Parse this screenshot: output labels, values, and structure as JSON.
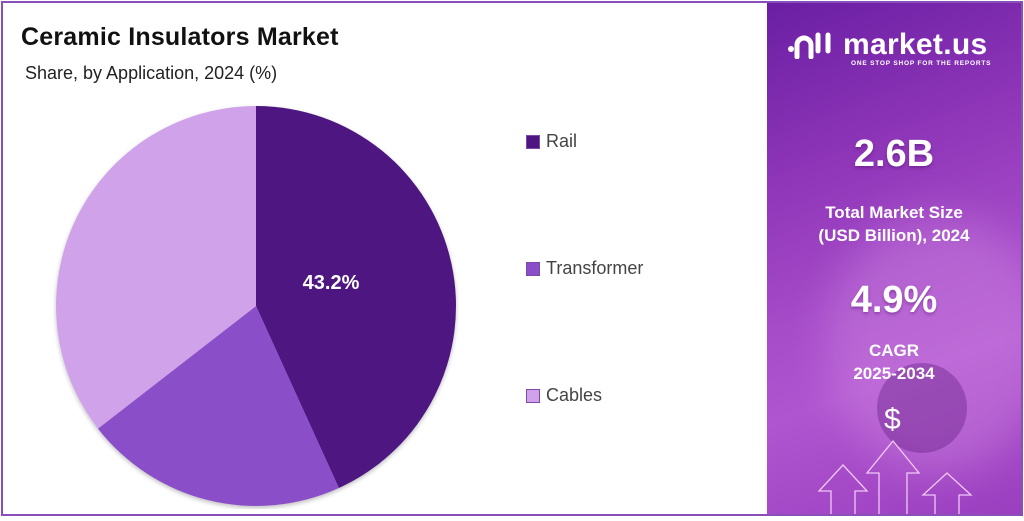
{
  "header": {
    "title": "Ceramic Insulators Market",
    "subtitle": "Share, by Application, 2024 (%)"
  },
  "legend": {
    "items": [
      {
        "label": "Rail",
        "color": "#4d1680"
      },
      {
        "label": "Transformer",
        "color": "#8a4fc8"
      },
      {
        "label": "Cables",
        "color": "#cfa2ea"
      }
    ]
  },
  "pie": {
    "label_rail": "43.2%"
  },
  "brand": {
    "name": "market.us",
    "tagline": "ONE STOP SHOP FOR THE REPORTS"
  },
  "stats": {
    "market_size_value": "2.6B",
    "market_size_label_line1": "Total Market Size",
    "market_size_label_line2": "(USD Billion), 2024",
    "cagr_value": "4.9%",
    "cagr_label_line1": "CAGR",
    "cagr_label_line2": "2025-2034",
    "dollar_symbol": "$"
  },
  "colors": {
    "rail": "#4d1680",
    "transformer": "#8a4fc8",
    "cables": "#cfa2ea",
    "frame": "#8a4fb8",
    "panel": "#9a3fbf"
  },
  "chart_data": {
    "type": "pie",
    "title": "Ceramic Insulators Market",
    "subtitle": "Share, by Application, 2024 (%)",
    "categories": [
      "Rail",
      "Transformer",
      "Cables"
    ],
    "values": [
      43.2,
      21.3,
      35.5
    ],
    "colors": [
      "#4d1680",
      "#8a4fc8",
      "#cfa2ea"
    ],
    "data_labels": {
      "Rail": "43.2%"
    },
    "start_angle": "12 o'clock, clockwise",
    "legend_position": "right"
  }
}
